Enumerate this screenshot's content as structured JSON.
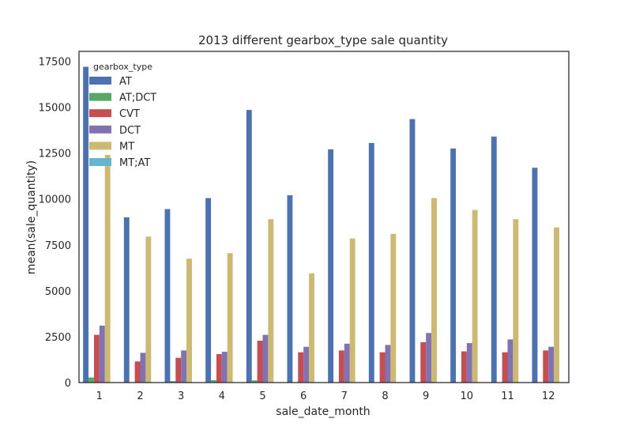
{
  "chart_data": {
    "type": "bar",
    "title": "2013 different gearbox_type sale quantity",
    "xlabel": "sale_date_month",
    "ylabel": "mean(sale_quantity)",
    "ylim": [
      0,
      17500
    ],
    "yticks": [
      0,
      2500,
      5000,
      7500,
      10000,
      12500,
      15000,
      17500
    ],
    "grid": false,
    "legend": {
      "title": "gearbox_type",
      "placement": "top-left"
    },
    "categories": [
      "1",
      "2",
      "3",
      "4",
      "5",
      "6",
      "7",
      "8",
      "9",
      "10",
      "11",
      "12"
    ],
    "series": [
      {
        "name": "AT",
        "color": "#4c72b0",
        "values": [
          17200,
          9000,
          9450,
          10050,
          14850,
          10200,
          12700,
          13050,
          14350,
          12750,
          13400,
          11700
        ]
      },
      {
        "name": "AT;DCT",
        "color": "#55a868",
        "values": [
          280,
          0,
          80,
          130,
          120,
          0,
          0,
          0,
          0,
          0,
          0,
          0
        ]
      },
      {
        "name": "CVT",
        "color": "#c44e52",
        "values": [
          2600,
          1150,
          1350,
          1550,
          2280,
          1650,
          1750,
          1650,
          2200,
          1700,
          1650,
          1750
        ]
      },
      {
        "name": "DCT",
        "color": "#8172b2",
        "values": [
          3100,
          1620,
          1750,
          1680,
          2600,
          1950,
          2120,
          2050,
          2700,
          2150,
          2350,
          1950
        ]
      },
      {
        "name": "MT",
        "color": "#ccb974",
        "values": [
          12400,
          7950,
          6750,
          7050,
          8900,
          5950,
          7850,
          8100,
          10050,
          9400,
          8900,
          8450
        ]
      },
      {
        "name": "MT;AT",
        "color": "#64b5cd",
        "values": [
          0,
          0,
          0,
          0,
          0,
          0,
          0,
          0,
          0,
          0,
          0,
          0
        ]
      }
    ]
  }
}
